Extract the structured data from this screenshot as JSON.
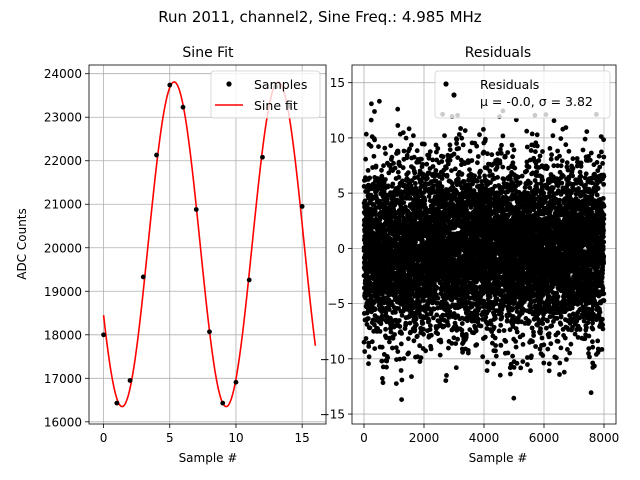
{
  "figure": {
    "suptitle": "Run 2011, channel2, Sine Freq.: 4.985 MHz"
  },
  "chart_data": [
    {
      "type": "line",
      "title": "Sine Fit",
      "xlabel": "Sample #",
      "ylabel": "ADC Counts",
      "xlim": [
        -1.1,
        16.8
      ],
      "ylim": [
        15950,
        24200
      ],
      "xticks": [
        0,
        5,
        10,
        15
      ],
      "yticks": [
        16000,
        17000,
        18000,
        19000,
        20000,
        21000,
        22000,
        23000,
        24000
      ],
      "grid": true,
      "legend_position": "upper-right",
      "series": [
        {
          "name": "Samples",
          "kind": "scatter",
          "color": "#000000",
          "x": [
            0,
            1,
            2,
            3,
            4,
            5,
            6,
            7,
            8,
            9,
            10,
            11,
            12,
            13,
            14,
            15
          ],
          "y": [
            18000,
            16430,
            16950,
            19330,
            22130,
            23740,
            23230,
            20880,
            18070,
            16430,
            16910,
            19260,
            22080,
            23700,
            23250,
            20950
          ]
        },
        {
          "name": "Sine fit",
          "kind": "line",
          "color": "#ff0000",
          "model": {
            "offset": 20080,
            "amplitude": 3730,
            "period": 7.86,
            "phase_sample": 5.33
          },
          "x_range": [
            0,
            16
          ]
        }
      ]
    },
    {
      "type": "scatter",
      "title": "Residuals",
      "xlabel": "Sample #",
      "xlim": [
        -400,
        8400
      ],
      "ylim": [
        -15.9,
        16.6
      ],
      "xticks": [
        0,
        2000,
        4000,
        6000,
        8000
      ],
      "yticks": [
        -15,
        -10,
        -5,
        0,
        5,
        10,
        15
      ],
      "grid": true,
      "legend_position": "upper-right",
      "series": [
        {
          "name": "Residuals",
          "color": "#000000",
          "count": 8000,
          "mean": -0.0,
          "sigma": 3.82,
          "clip": [
            -14.6,
            15.0
          ]
        }
      ],
      "legend_entries": [
        "Residuals",
        "μ = -0.0, σ = 3.82"
      ]
    }
  ]
}
